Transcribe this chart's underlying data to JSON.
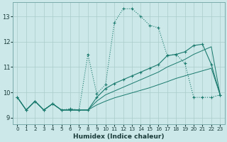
{
  "background_color": "#cce8e8",
  "grid_color": "#aacccc",
  "line_color": "#1a7a6e",
  "xlabel": "Humidex (Indice chaleur)",
  "xlim": [
    -0.5,
    23.5
  ],
  "ylim": [
    8.75,
    13.55
  ],
  "yticks": [
    9,
    10,
    11,
    12,
    13
  ],
  "xticks": [
    0,
    1,
    2,
    3,
    4,
    5,
    6,
    7,
    8,
    9,
    10,
    11,
    12,
    13,
    14,
    15,
    16,
    17,
    18,
    19,
    20,
    21,
    22,
    23
  ],
  "line1_x": [
    0,
    1,
    2,
    3,
    4,
    5,
    6,
    7,
    8,
    9,
    10,
    11,
    12,
    13,
    14,
    15,
    16,
    17,
    18,
    19,
    20,
    21,
    22,
    23
  ],
  "line1_y": [
    9.8,
    9.3,
    9.65,
    9.3,
    9.55,
    9.3,
    9.35,
    9.3,
    11.5,
    9.95,
    10.3,
    12.75,
    13.3,
    13.3,
    13.0,
    12.65,
    12.55,
    11.45,
    11.5,
    11.15,
    9.8,
    9.8,
    9.8,
    9.9
  ],
  "line2_x": [
    0,
    1,
    2,
    3,
    4,
    5,
    6,
    7,
    8,
    9,
    10,
    11,
    12,
    13,
    14,
    15,
    16,
    17,
    18,
    19,
    20,
    21,
    22,
    23
  ],
  "line2_y": [
    9.8,
    9.3,
    9.65,
    9.3,
    9.55,
    9.3,
    9.3,
    9.3,
    9.3,
    9.8,
    10.15,
    10.35,
    10.5,
    10.65,
    10.8,
    10.95,
    11.1,
    11.45,
    11.5,
    11.6,
    11.85,
    11.9,
    11.1,
    9.9
  ],
  "line3_x": [
    0,
    1,
    2,
    3,
    4,
    5,
    6,
    7,
    8,
    9,
    10,
    11,
    12,
    13,
    14,
    15,
    16,
    17,
    18,
    19,
    20,
    21,
    22,
    23
  ],
  "line3_y": [
    9.8,
    9.3,
    9.65,
    9.3,
    9.55,
    9.3,
    9.3,
    9.3,
    9.3,
    9.65,
    9.9,
    10.05,
    10.2,
    10.35,
    10.5,
    10.65,
    10.8,
    11.0,
    11.15,
    11.3,
    11.5,
    11.65,
    11.8,
    9.9
  ],
  "line4_x": [
    0,
    1,
    2,
    3,
    4,
    5,
    6,
    7,
    8,
    9,
    10,
    11,
    12,
    13,
    14,
    15,
    16,
    17,
    18,
    19,
    20,
    21,
    22,
    23
  ],
  "line4_y": [
    9.8,
    9.3,
    9.65,
    9.3,
    9.55,
    9.3,
    9.3,
    9.3,
    9.3,
    9.5,
    9.65,
    9.78,
    9.88,
    9.98,
    10.08,
    10.18,
    10.3,
    10.42,
    10.55,
    10.65,
    10.75,
    10.85,
    10.95,
    9.9
  ]
}
